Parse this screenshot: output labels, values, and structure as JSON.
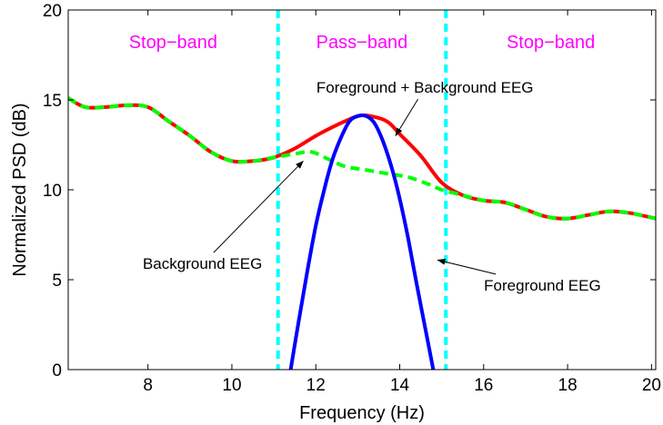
{
  "chart_data": {
    "type": "line",
    "xlabel": "Frequency (Hz)",
    "ylabel": "Normalized PSD (dB)",
    "xlim": [
      6.1,
      20.1
    ],
    "ylim": [
      0,
      20
    ],
    "xticks": [
      8,
      10,
      12,
      14,
      16,
      18,
      20
    ],
    "yticks": [
      0,
      5,
      10,
      15,
      20
    ],
    "grid": false,
    "bands": [
      {
        "label": "Stop−band",
        "x_center": 8.6
      },
      {
        "label": "Pass−band",
        "x_center": 13.1
      },
      {
        "label": "Stop−band",
        "x_center": 17.6
      }
    ],
    "cutoffs": [
      11.1,
      15.1
    ],
    "series": [
      {
        "name": "Foreground + Background EEG",
        "color": "#ff0000",
        "style": "solid",
        "x": [
          6.1,
          6.5,
          7.0,
          7.5,
          8.0,
          8.5,
          9.0,
          9.5,
          10.0,
          10.5,
          11.0,
          11.5,
          12.0,
          12.5,
          13.0,
          13.3,
          13.7,
          14.0,
          14.5,
          15.0,
          15.5,
          16.0,
          16.5,
          17.0,
          17.5,
          18.0,
          18.5,
          19.0,
          19.5,
          20.1
        ],
        "y": [
          15.1,
          14.6,
          14.6,
          14.7,
          14.6,
          13.8,
          13.0,
          12.1,
          11.6,
          11.6,
          11.8,
          12.3,
          13.0,
          13.6,
          14.1,
          14.1,
          13.8,
          13.1,
          11.9,
          10.4,
          9.7,
          9.4,
          9.3,
          8.9,
          8.5,
          8.4,
          8.6,
          8.8,
          8.7,
          8.4
        ]
      },
      {
        "name": "Background EEG",
        "color": "#00ff00",
        "style": "dashed",
        "x": [
          6.1,
          6.5,
          7.0,
          7.5,
          8.0,
          8.5,
          9.0,
          9.5,
          10.0,
          10.5,
          11.0,
          11.5,
          11.9,
          12.3,
          12.7,
          13.2,
          13.7,
          14.2,
          14.7,
          15.0,
          15.5,
          16.0,
          16.5,
          17.0,
          17.5,
          18.0,
          18.5,
          19.0,
          19.5,
          20.1
        ],
        "y": [
          15.1,
          14.6,
          14.6,
          14.7,
          14.6,
          13.8,
          13.0,
          12.1,
          11.6,
          11.6,
          11.8,
          12.0,
          12.1,
          11.7,
          11.3,
          11.1,
          10.9,
          10.7,
          10.3,
          10.0,
          9.7,
          9.4,
          9.3,
          8.9,
          8.5,
          8.4,
          8.6,
          8.8,
          8.7,
          8.4
        ]
      },
      {
        "name": "Foreground EEG",
        "color": "#0000ff",
        "style": "solid",
        "x": [
          11.4,
          11.6,
          11.8,
          12.0,
          12.2,
          12.4,
          12.6,
          12.8,
          13.0,
          13.2,
          13.4,
          13.6,
          13.8,
          14.0,
          14.2,
          14.4,
          14.6,
          14.8
        ],
        "y": [
          0.0,
          2.8,
          5.5,
          8.0,
          10.0,
          11.7,
          12.9,
          13.8,
          14.1,
          14.1,
          13.7,
          12.7,
          11.3,
          9.5,
          7.3,
          4.8,
          2.4,
          0.0
        ]
      }
    ],
    "annotations": [
      {
        "text": "Foreground + Background EEG",
        "text_x": 14.6,
        "text_y": 15.4,
        "arrow_x": 13.9,
        "arrow_y": 13.0
      },
      {
        "text": "Background EEG",
        "text_x": 9.3,
        "text_y": 5.6,
        "arrow_x": 11.7,
        "arrow_y": 11.6
      },
      {
        "text": "Foreground EEG",
        "text_x": 17.4,
        "text_y": 4.4,
        "arrow_x": 14.9,
        "arrow_y": 6.1
      }
    ],
    "colors": {
      "band_label": "#ff00ff",
      "cutoff_line": "#00ffff",
      "axes": "#000000"
    }
  }
}
